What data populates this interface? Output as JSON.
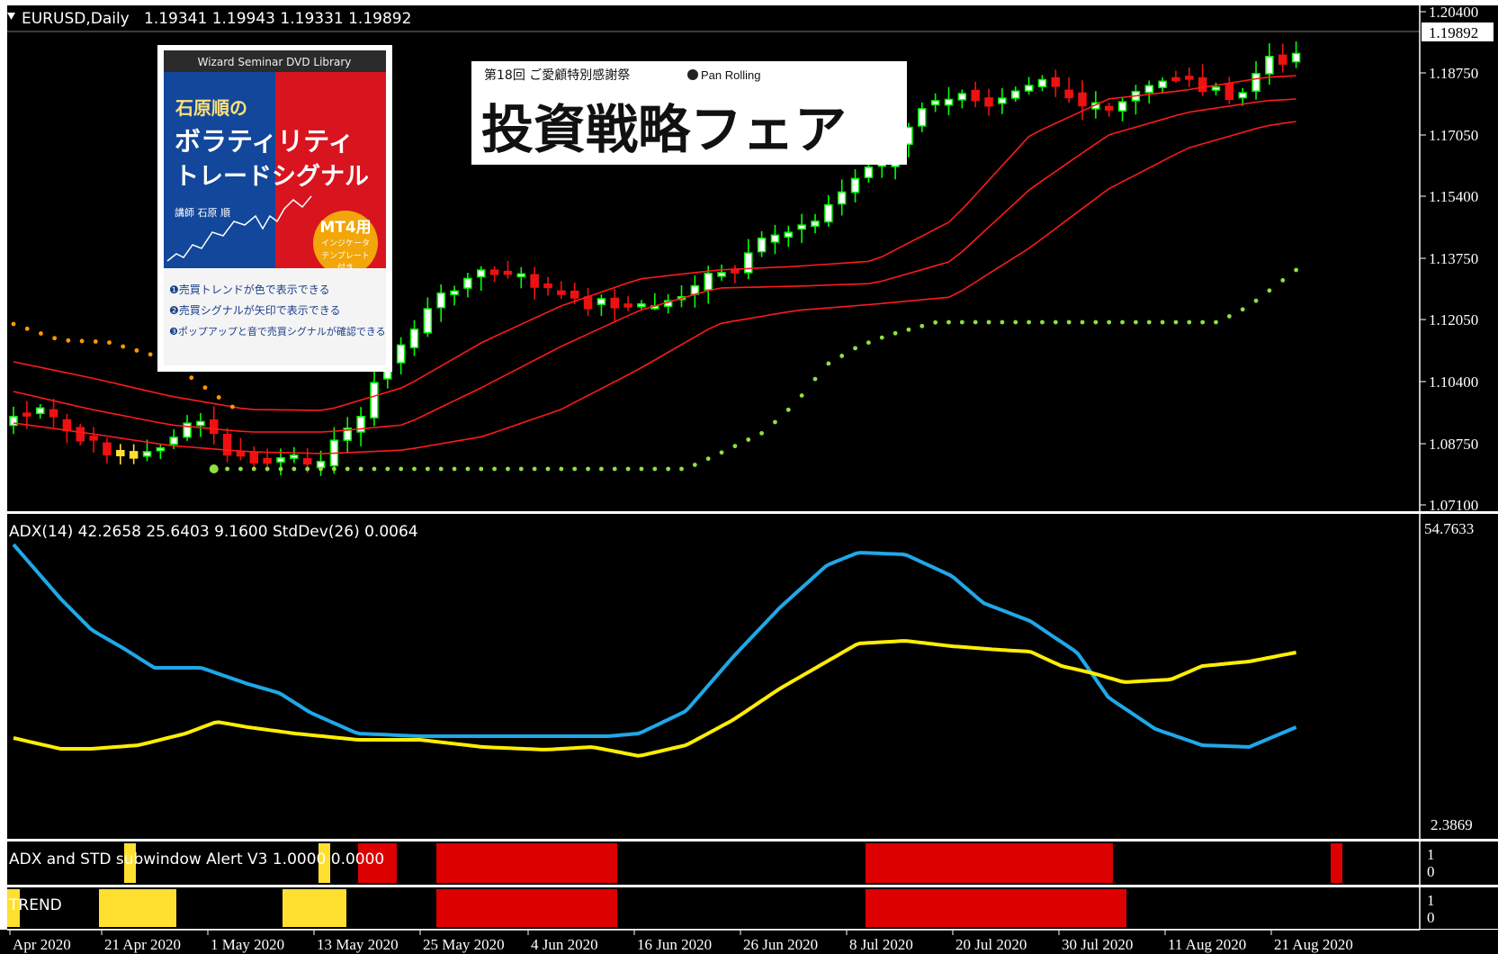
{
  "main": {
    "symbol_label": "EURUSD,Daily",
    "ohlc_label": "1.19341 1.19943 1.19331 1.19892",
    "current_price": "1.19892",
    "price_ticks": [
      "1.20400",
      "1.18750",
      "1.17050",
      "1.15400",
      "1.13750",
      "1.12050",
      "1.10400",
      "1.08750",
      "1.07100"
    ]
  },
  "adx": {
    "label": "ADX(14) 42.2658 25.6403 9.1600  StdDev(26) 0.0064",
    "top_value": "54.7633",
    "bottom_value": "2.3869"
  },
  "alert": {
    "label": "ADX and STD subwindow Alert V3 1.0000 0.0000",
    "scale": [
      "1",
      "0"
    ]
  },
  "trend": {
    "label": "TREND",
    "scale": [
      "1",
      "0"
    ]
  },
  "date_ticks": [
    "Apr 2020",
    "21 Apr 2020",
    "1 May 2020",
    "13 May 2020",
    "25 May 2020",
    "4 Jun 2020",
    "16 Jun 2020",
    "26 Jun 2020",
    "8 Jul 2020",
    "20 Jul 2020",
    "30 Jul 2020",
    "11 Aug 2020",
    "21 Aug 2020"
  ],
  "ad_dvd": {
    "series": "Wizard Seminar DVD Library",
    "author_title": "石原順の",
    "title_line1": "ボラティリティ",
    "title_line2": "トレードシグナル",
    "lecturer": "講師 石原 順",
    "badge": "MT4用",
    "badge_sub1": "インジケータ",
    "badge_sub2": "テンプレート",
    "badge_sub3": "付き",
    "bullet1": "❶売買トレンドが色で表示できる",
    "bullet2": "❷売買シグナルが矢印で表示できる",
    "bullet3": "❸ポップアップと音で売買シグナルが確認できる"
  },
  "ad_fair": {
    "small": "第18回 ご愛顧特別感謝祭",
    "brand": "Pan Rolling",
    "title": "投資戦略フェア"
  },
  "colors": {
    "background": "#000000",
    "bull": "#00ff00",
    "bear": "#ff0000",
    "band": "#ff0000",
    "psar_up": "#90e040",
    "psar_down": "#ff9900",
    "adx_blue": "#1fa8e8",
    "adx_yellow": "#ffee00",
    "alert_red": "#dd0000",
    "trend_yellow": "#ffe030"
  },
  "icons": {
    "dropdown": "triangle-down-icon"
  }
}
